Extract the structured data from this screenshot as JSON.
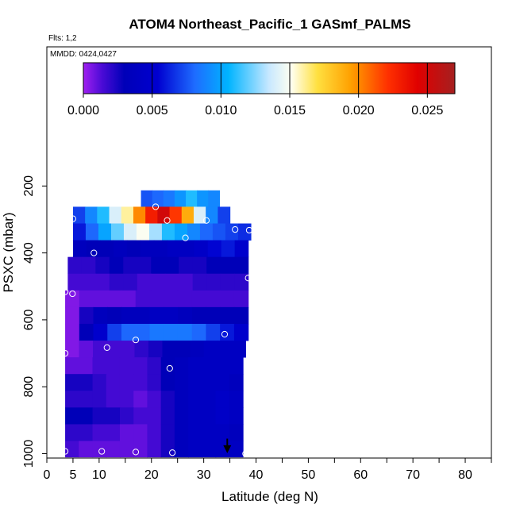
{
  "chart_data": {
    "type": "heatmap",
    "title": "ATOM4 Northeast_Pacific_1 GASmf_PALMS",
    "flights_label": "Flts: 1,2",
    "date_label": "MMDD: 0424,0427",
    "xlabel": "Latitude (deg N)",
    "ylabel": "PSXC (mbar)",
    "xlim": [
      0,
      85
    ],
    "ylim": [
      1000,
      0
    ],
    "x_ticks": [
      0,
      5,
      10,
      20,
      30,
      40,
      50,
      60,
      70,
      80
    ],
    "y_ticks": [
      200,
      400,
      600,
      800,
      1000
    ],
    "colorbar": {
      "range": [
        0,
        0.027
      ],
      "ticks": [
        0.0,
        0.005,
        0.01,
        0.015,
        0.02,
        0.025
      ],
      "tick_labels": [
        "0.000",
        "0.005",
        "0.010",
        "0.015",
        "0.020",
        "0.025"
      ],
      "colors": [
        "#a020f0",
        "#0000cd",
        "#0000c8",
        "#1e90ff",
        "#00bfff",
        "#ffffff",
        "#ffd700",
        "#ff8c00",
        "#ff0000",
        "#b22222"
      ]
    },
    "grid": false,
    "rows": [
      {
        "p0": 213,
        "p1": 262,
        "x0": 18,
        "x1": 33,
        "v": [
          0.0075,
          0.008,
          0.0085,
          0.0095,
          0.011,
          0.0095,
          0.009
        ]
      },
      {
        "p0": 262,
        "p1": 312,
        "x0": 5,
        "x1": 35,
        "v": [
          0.007,
          0.009,
          0.011,
          0.014,
          0.016,
          0.02,
          0.023,
          0.025,
          0.022,
          0.019,
          0.014,
          0.009,
          0.007
        ]
      },
      {
        "p0": 312,
        "p1": 362,
        "x0": 5,
        "x1": 39,
        "v": [
          0.006,
          0.008,
          0.01,
          0.012,
          0.014,
          0.015,
          0.013,
          0.011,
          0.01,
          0.009,
          0.008,
          0.0075,
          0.007,
          0.0065
        ]
      },
      {
        "p0": 362,
        "p1": 412,
        "x0": 5,
        "x1": 38.5,
        "v": [
          0.0035,
          0.003,
          0.003,
          0.0035,
          0.003,
          0.0035,
          0.0035,
          0.004,
          0.004,
          0.0045,
          0.0055,
          0.006,
          0.005
        ]
      },
      {
        "p0": 412,
        "p1": 462,
        "x0": 4,
        "x1": 38.5,
        "v": [
          0.002,
          0.002,
          0.0025,
          0.003,
          0.0025,
          0.0025,
          0.003,
          0.003,
          0.0025,
          0.0025,
          0.003,
          0.003,
          0.003
        ]
      },
      {
        "p0": 462,
        "p1": 512,
        "x0": 4,
        "x1": 38.5,
        "v": [
          0.0015,
          0.0015,
          0.0015,
          0.002,
          0.002,
          0.0015,
          0.0015,
          0.0015,
          0.0015,
          0.002,
          0.002,
          0.002,
          0.002
        ]
      },
      {
        "p0": 512,
        "p1": 562,
        "x0": 3.5,
        "x1": 38.5,
        "v": [
          0.0005,
          0.001,
          0.001,
          0.001,
          0.001,
          0.0015,
          0.0015,
          0.0015,
          0.0015,
          0.0015,
          0.0015,
          0.0015,
          0.0015
        ]
      },
      {
        "p0": 562,
        "p1": 612,
        "x0": 3.5,
        "x1": 38.5,
        "v": [
          0.0005,
          0.0025,
          0.0035,
          0.003,
          0.0035,
          0.0035,
          0.004,
          0.004,
          0.0035,
          0.003,
          0.003,
          0.003,
          0.003
        ]
      },
      {
        "p0": 612,
        "p1": 662,
        "x0": 3.5,
        "x1": 38.5,
        "v": [
          0.0005,
          0.003,
          0.005,
          0.007,
          0.008,
          0.008,
          0.0085,
          0.0085,
          0.0085,
          0.008,
          0.007,
          0.006,
          0.005
        ]
      },
      {
        "p0": 662,
        "p1": 712,
        "x0": 3.5,
        "x1": 38,
        "v": [
          0.0005,
          0.001,
          0.0015,
          0.0015,
          0.0015,
          0.002,
          0.0025,
          0.003,
          0.003,
          0.0035,
          0.004,
          0.004,
          0.004
        ]
      },
      {
        "p0": 712,
        "p1": 762,
        "x0": 3.5,
        "x1": 37.5,
        "v": [
          0.001,
          0.001,
          0.0015,
          0.0015,
          0.0015,
          0.0015,
          0.002,
          0.003,
          0.0035,
          0.004,
          0.004,
          0.004,
          0.004
        ]
      },
      {
        "p0": 762,
        "p1": 812,
        "x0": 3.5,
        "x1": 37.5,
        "v": [
          0.0025,
          0.0025,
          0.002,
          0.0015,
          0.0015,
          0.0015,
          0.002,
          0.003,
          0.0035,
          0.004,
          0.004,
          0.004,
          0.0035
        ]
      },
      {
        "p0": 812,
        "p1": 862,
        "x0": 3.5,
        "x1": 37.5,
        "v": [
          0.002,
          0.002,
          0.002,
          0.0015,
          0.0015,
          0.001,
          0.0015,
          0.0025,
          0.0035,
          0.004,
          0.004,
          0.0045,
          0.004
        ]
      },
      {
        "p0": 862,
        "p1": 912,
        "x0": 3.5,
        "x1": 37.5,
        "v": [
          0.003,
          0.003,
          0.0025,
          0.0025,
          0.002,
          0.0015,
          0.0015,
          0.0025,
          0.0035,
          0.004,
          0.004,
          0.0045,
          0.004
        ]
      },
      {
        "p0": 912,
        "p1": 962,
        "x0": 3.5,
        "x1": 37.5,
        "v": [
          0.002,
          0.002,
          0.0015,
          0.0015,
          0.001,
          0.001,
          0.0015,
          0.0025,
          0.0035,
          0.004,
          0.004,
          0.004,
          0.0035
        ]
      },
      {
        "p0": 962,
        "p1": 1010,
        "x0": 3.5,
        "x1": 37.5,
        "v": [
          0.0015,
          0.001,
          0.001,
          0.001,
          0.001,
          0.001,
          0.0015,
          0.0025,
          0.0035,
          0.004,
          0.004,
          0.004,
          0.004
        ]
      }
    ],
    "sample_points": [
      [
        20.8,
        262
      ],
      [
        5,
        298
      ],
      [
        23,
        303
      ],
      [
        30.5,
        303
      ],
      [
        36,
        330
      ],
      [
        38.7,
        332
      ],
      [
        26.5,
        355
      ],
      [
        9,
        400
      ],
      [
        38.5,
        475
      ],
      [
        3.5,
        516
      ],
      [
        4.9,
        522
      ],
      [
        34,
        643
      ],
      [
        17,
        660
      ],
      [
        11.5,
        683
      ],
      [
        3.5,
        700
      ],
      [
        23.5,
        745
      ],
      [
        3.5,
        993
      ],
      [
        10.5,
        993
      ],
      [
        17,
        995
      ],
      [
        24,
        997
      ],
      [
        38,
        1000
      ]
    ],
    "marker": {
      "x": 34.5,
      "p": 970
    }
  }
}
